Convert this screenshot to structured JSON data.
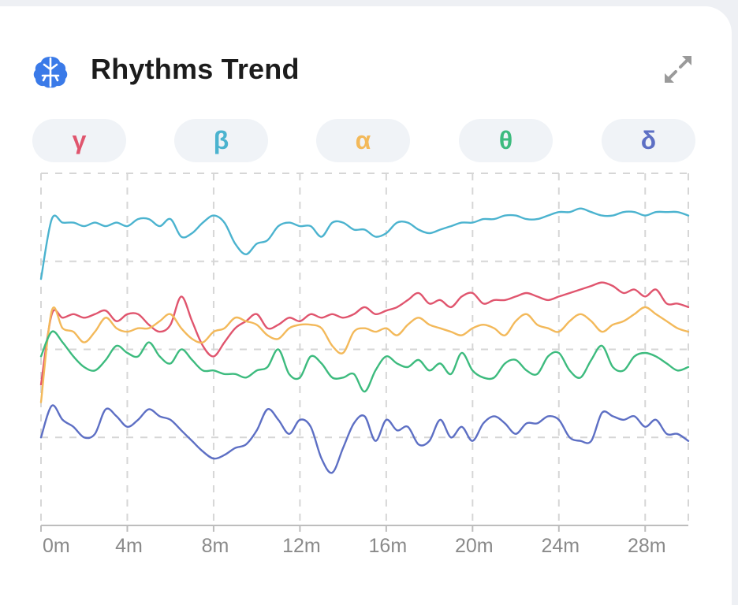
{
  "header": {
    "title": "Rhythms Trend",
    "icon": "brain-icon",
    "action_icon": "expand-icon"
  },
  "bands": [
    {
      "symbol": "γ",
      "color": "#e0556e"
    },
    {
      "symbol": "β",
      "color": "#4bb3cf"
    },
    {
      "symbol": "α",
      "color": "#f3b95a"
    },
    {
      "symbol": "θ",
      "color": "#3dbb7e"
    },
    {
      "symbol": "δ",
      "color": "#5d6fc4"
    }
  ],
  "chart_data": {
    "type": "line",
    "x_ticks": [
      "0m",
      "4m",
      "8m",
      "12m",
      "16m",
      "20m",
      "24m",
      "28m"
    ],
    "x_tick_values": [
      0,
      4,
      8,
      12,
      16,
      20,
      24,
      28
    ],
    "xlim": [
      0,
      30
    ],
    "ylim": [
      0,
      100
    ],
    "grid": true,
    "x_step": 0.5,
    "series": [
      {
        "name": "β",
        "color": "#4bb3cf",
        "values": [
          70,
          87,
          86,
          86,
          85,
          86,
          85,
          86,
          85,
          87,
          87,
          85,
          87,
          82,
          83,
          86,
          88,
          86,
          80,
          77,
          80,
          81,
          85,
          86,
          85,
          85,
          82,
          86,
          86,
          84,
          84,
          82,
          83,
          86,
          86,
          84,
          83,
          84,
          85,
          86,
          86,
          87,
          87,
          88,
          88,
          87,
          87,
          88,
          89,
          89,
          90,
          89,
          88,
          88,
          89,
          89,
          88,
          89,
          89,
          89,
          88
        ]
      },
      {
        "name": "γ",
        "color": "#e0556e",
        "values": [
          40,
          60,
          59,
          60,
          59,
          60,
          61,
          58,
          60,
          60,
          57,
          55,
          57,
          65,
          58,
          51,
          48,
          52,
          56,
          58,
          60,
          56,
          57,
          59,
          58,
          60,
          59,
          60,
          59,
          60,
          62,
          60,
          61,
          62,
          64,
          66,
          63,
          64,
          62,
          65,
          66,
          63,
          64,
          64,
          65,
          66,
          65,
          64,
          65,
          66,
          67,
          68,
          69,
          68,
          66,
          67,
          65,
          67,
          63,
          63,
          62
        ]
      },
      {
        "name": "α",
        "color": "#f3b95a",
        "values": [
          35,
          61,
          56,
          55,
          52,
          55,
          59,
          56,
          55,
          56,
          56,
          58,
          60,
          56,
          53,
          52,
          55,
          56,
          59,
          58,
          57,
          54,
          53,
          56,
          57,
          57,
          56,
          51,
          49,
          55,
          56,
          55,
          56,
          54,
          57,
          59,
          57,
          56,
          55,
          54,
          56,
          57,
          56,
          54,
          58,
          60,
          57,
          56,
          55,
          58,
          60,
          58,
          55,
          57,
          58,
          60,
          62,
          60,
          58,
          56,
          55
        ]
      },
      {
        "name": "θ",
        "color": "#3dbb7e",
        "values": [
          48,
          55,
          52,
          48,
          45,
          44,
          47,
          51,
          49,
          48,
          52,
          48,
          46,
          50,
          47,
          44,
          44,
          43,
          43,
          42,
          44,
          45,
          50,
          43,
          42,
          48,
          46,
          42,
          42,
          43,
          38,
          44,
          48,
          46,
          45,
          47,
          44,
          46,
          43,
          49,
          44,
          42,
          42,
          46,
          47,
          44,
          43,
          48,
          49,
          44,
          42,
          47,
          51,
          45,
          44,
          48,
          49,
          48,
          46,
          44,
          45
        ]
      },
      {
        "name": "δ",
        "color": "#5d6fc4",
        "values": [
          25,
          34,
          30,
          28,
          25,
          26,
          33,
          31,
          28,
          30,
          33,
          31,
          30,
          27,
          24,
          21,
          19,
          20,
          22,
          23,
          27,
          33,
          30,
          26,
          30,
          28,
          19,
          15,
          22,
          29,
          31,
          24,
          30,
          27,
          28,
          23,
          24,
          30,
          25,
          28,
          24,
          29,
          31,
          29,
          26,
          29,
          29,
          31,
          30,
          25,
          24,
          24,
          32,
          31,
          30,
          31,
          28,
          30,
          26,
          26,
          24
        ]
      }
    ]
  }
}
